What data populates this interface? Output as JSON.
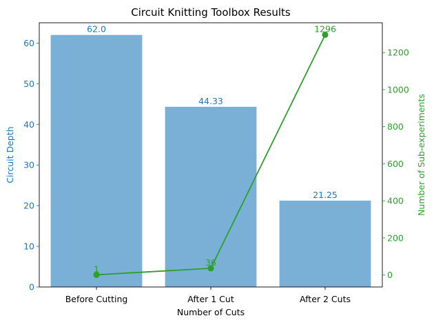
{
  "chart_data": {
    "type": "bar",
    "title": "Circuit Knitting Toolbox Results",
    "xlabel": "Number of Cuts",
    "categories": [
      "Before Cutting",
      "After 1 Cut",
      "After 2 Cuts"
    ],
    "left_axis": {
      "label": "Circuit Depth",
      "ylim": [
        0,
        65
      ],
      "ticks": [
        "0",
        "10",
        "20",
        "30",
        "40",
        "50",
        "60"
      ],
      "color": "#1f77b4"
    },
    "right_axis": {
      "label": "Number of Sub-experiments",
      "ylim": [
        -64.75,
        1360.75
      ],
      "ticks": [
        "0",
        "200",
        "400",
        "600",
        "800",
        "1000",
        "1200"
      ],
      "color": "#2ca02c"
    },
    "series": [
      {
        "type": "bar",
        "axis": "left",
        "values": [
          62.0,
          44.33,
          21.25
        ],
        "labels": [
          "62.0",
          "44.33",
          "21.25"
        ],
        "color": "#7aafd6"
      },
      {
        "type": "line",
        "axis": "right",
        "values": [
          1,
          36,
          1296
        ],
        "labels": [
          "1",
          "36",
          "1296"
        ],
        "color": "#2ca02c"
      }
    ],
    "grid": false
  }
}
